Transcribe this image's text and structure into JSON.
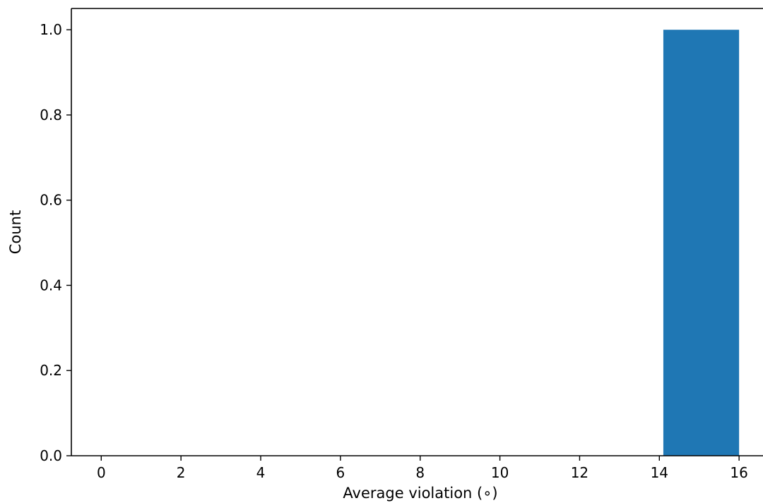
{
  "chart_data": {
    "type": "bar",
    "title": "",
    "xlabel": "Average violation (∘)",
    "ylabel": "Count",
    "xlim": [
      -0.75,
      16.6
    ],
    "ylim": [
      0,
      1.05
    ],
    "xticks": [
      0,
      2,
      4,
      6,
      8,
      10,
      12,
      14,
      16
    ],
    "xtick_labels": [
      "0",
      "2",
      "4",
      "6",
      "8",
      "10",
      "12",
      "14",
      "16"
    ],
    "yticks": [
      0.0,
      0.2,
      0.4,
      0.6,
      0.8,
      1.0
    ],
    "ytick_labels": [
      "0.0",
      "0.2",
      "0.4",
      "0.6",
      "0.8",
      "1.0"
    ],
    "bars": [
      {
        "x_start": 14.1,
        "x_end": 16.0,
        "value": 1.0
      }
    ],
    "bar_color": "#1f77b4",
    "grid": false,
    "legend": "none"
  }
}
